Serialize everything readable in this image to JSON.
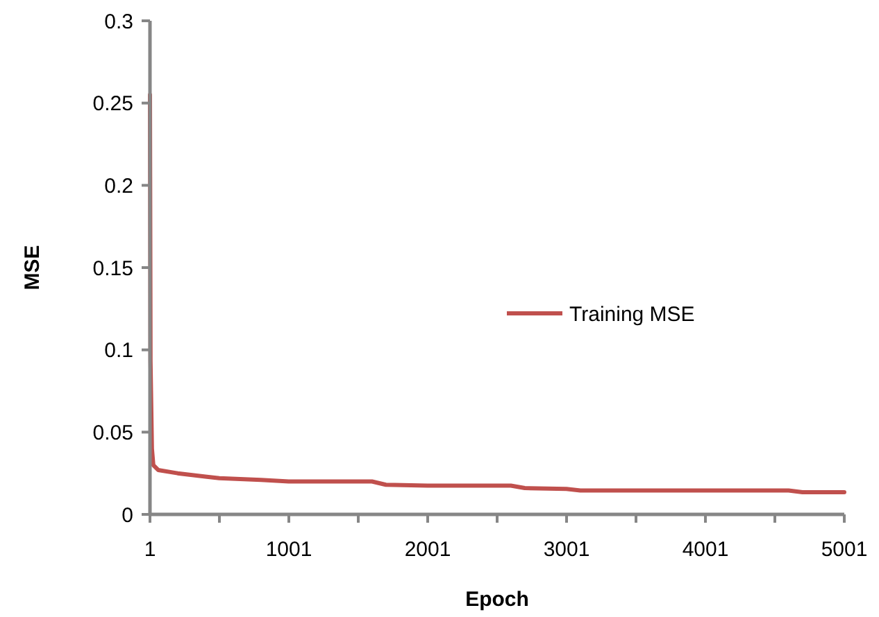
{
  "chart_data": {
    "type": "line",
    "xlabel": "Epoch",
    "ylabel": "MSE",
    "xlim": [
      1,
      5001
    ],
    "xticks": [
      1,
      {
        "value": 501,
        "label": null
      },
      1001,
      {
        "value": 1501,
        "label": null
      },
      2001,
      {
        "value": 2501,
        "label": null
      },
      3001,
      {
        "value": 3501,
        "label": null
      },
      4001,
      {
        "value": 4501,
        "label": null
      },
      5001
    ],
    "ylim": [
      0,
      0.3
    ],
    "yticks": [
      0,
      0.05,
      0.1,
      0.15,
      0.2,
      0.25,
      0.3
    ],
    "grid": false,
    "legend": "right",
    "marker": "none",
    "line_style": "solid",
    "series": [
      {
        "name": "Training MSE",
        "color": "#c0504d",
        "x": [
          1,
          5,
          15,
          25,
          60,
          200,
          400,
          500,
          800,
          1000,
          1600,
          1700,
          2000,
          2600,
          2700,
          3000,
          3100,
          4600,
          4700,
          5001
        ],
        "values": [
          0.255,
          0.093,
          0.04,
          0.03,
          0.027,
          0.025,
          0.023,
          0.022,
          0.021,
          0.02,
          0.02,
          0.018,
          0.0175,
          0.0175,
          0.016,
          0.0155,
          0.0145,
          0.0145,
          0.0135,
          0.0135
        ]
      }
    ]
  }
}
